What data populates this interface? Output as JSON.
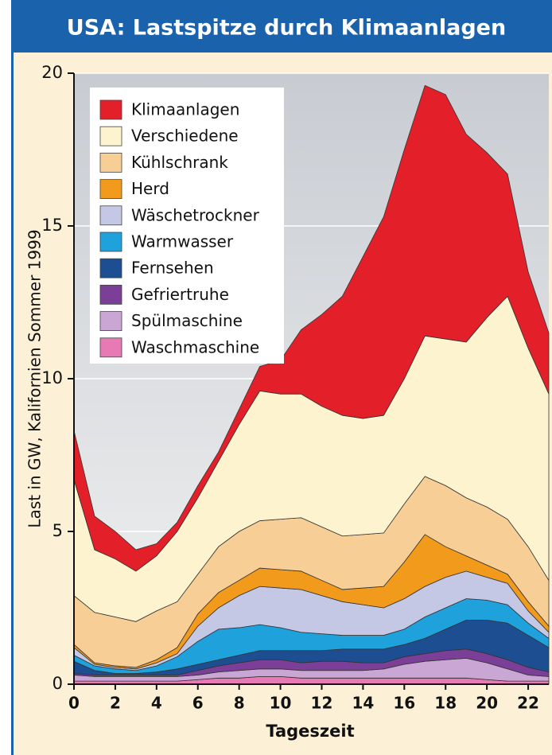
{
  "chart_data": {
    "type": "stacked_area",
    "title": "USA: Lastspitze durch Klimaanlagen",
    "x_label": "Tageszeit",
    "y_label": "Last in GW, Kalifornien Sommer 1999",
    "x": [
      0,
      1,
      2,
      3,
      4,
      5,
      6,
      7,
      8,
      9,
      10,
      11,
      12,
      13,
      14,
      15,
      16,
      17,
      18,
      19,
      20,
      21,
      22,
      23
    ],
    "xlim": [
      0,
      23
    ],
    "xticks": [
      0,
      2,
      4,
      6,
      8,
      10,
      12,
      14,
      16,
      18,
      20,
      22
    ],
    "ylim": [
      0,
      20
    ],
    "yticks": [
      0,
      5,
      10,
      15,
      20
    ],
    "grid": true,
    "legend": "upper left",
    "series": [
      {
        "name": "Klimaanlagen",
        "color": "#e3202a",
        "values": [
          1.6,
          1.1,
          0.9,
          0.7,
          0.4,
          0.3,
          0.4,
          0.3,
          0.5,
          0.8,
          1.1,
          2.1,
          3.0,
          3.9,
          5.3,
          6.5,
          7.5,
          8.2,
          8.0,
          6.8,
          5.4,
          4.0,
          2.5,
          2.0
        ]
      },
      {
        "name": "Verschiedene",
        "color": "#fdf3cf",
        "values": [
          3.8,
          2.05,
          1.9,
          1.65,
          1.8,
          2.3,
          2.5,
          2.8,
          3.5,
          4.25,
          4.1,
          4.05,
          3.95,
          3.95,
          3.8,
          3.85,
          4.1,
          4.6,
          4.8,
          5.1,
          6.2,
          7.3,
          6.5,
          6.1
        ]
      },
      {
        "name": "Kühlschrank",
        "color": "#f7cf96",
        "values": [
          1.6,
          1.65,
          1.6,
          1.5,
          1.6,
          1.5,
          1.3,
          1.5,
          1.6,
          1.55,
          1.65,
          1.75,
          1.75,
          1.75,
          1.75,
          1.75,
          1.9,
          1.9,
          2.0,
          1.9,
          1.9,
          1.8,
          1.8,
          1.5
        ]
      },
      {
        "name": "Herd",
        "color": "#f29a1c",
        "values": [
          0.1,
          0.05,
          0.05,
          0.05,
          0.1,
          0.2,
          0.4,
          0.5,
          0.5,
          0.6,
          0.6,
          0.6,
          0.5,
          0.4,
          0.55,
          0.7,
          1.2,
          1.7,
          1.0,
          0.5,
          0.4,
          0.3,
          0.3,
          0.2
        ]
      },
      {
        "name": "Wäschetrockner",
        "color": "#c5c8e4",
        "values": [
          0.25,
          0.05,
          0.05,
          0.05,
          0.1,
          0.1,
          0.5,
          0.7,
          1.05,
          1.25,
          1.3,
          1.4,
          1.25,
          1.1,
          1.0,
          0.9,
          1.0,
          1.0,
          1.0,
          0.9,
          0.75,
          0.7,
          0.4,
          0.2
        ]
      },
      {
        "name": "Warmwasser",
        "color": "#1fa1dc",
        "values": [
          0.2,
          0.15,
          0.15,
          0.1,
          0.2,
          0.4,
          0.75,
          1.0,
          0.9,
          0.85,
          0.75,
          0.6,
          0.55,
          0.45,
          0.45,
          0.45,
          0.5,
          0.7,
          0.7,
          0.7,
          0.65,
          0.6,
          0.4,
          0.3
        ]
      },
      {
        "name": "Fernsehen",
        "color": "#1c4e91",
        "values": [
          0.4,
          0.15,
          0.05,
          0.05,
          0.1,
          0.2,
          0.2,
          0.2,
          0.25,
          0.3,
          0.3,
          0.4,
          0.35,
          0.4,
          0.45,
          0.45,
          0.4,
          0.5,
          0.7,
          0.95,
          1.1,
          1.2,
          1.05,
          0.8
        ]
      },
      {
        "name": "Gefriertruhe",
        "color": "#7b3f97",
        "values": [
          0.05,
          0.05,
          0.05,
          0.05,
          0.05,
          0.05,
          0.15,
          0.2,
          0.25,
          0.3,
          0.3,
          0.25,
          0.3,
          0.3,
          0.25,
          0.2,
          0.25,
          0.25,
          0.3,
          0.3,
          0.3,
          0.3,
          0.25,
          0.15
        ]
      },
      {
        "name": "Spülmaschine",
        "color": "#c9a6d4",
        "values": [
          0.2,
          0.15,
          0.15,
          0.15,
          0.15,
          0.15,
          0.15,
          0.2,
          0.25,
          0.25,
          0.25,
          0.25,
          0.25,
          0.25,
          0.25,
          0.3,
          0.45,
          0.55,
          0.6,
          0.65,
          0.55,
          0.4,
          0.2,
          0.15
        ]
      },
      {
        "name": "Waschmaschine",
        "color": "#e779b4",
        "values": [
          0.1,
          0.1,
          0.1,
          0.1,
          0.1,
          0.1,
          0.15,
          0.2,
          0.2,
          0.25,
          0.25,
          0.2,
          0.2,
          0.2,
          0.2,
          0.2,
          0.2,
          0.2,
          0.2,
          0.2,
          0.15,
          0.1,
          0.1,
          0.1
        ]
      }
    ]
  }
}
